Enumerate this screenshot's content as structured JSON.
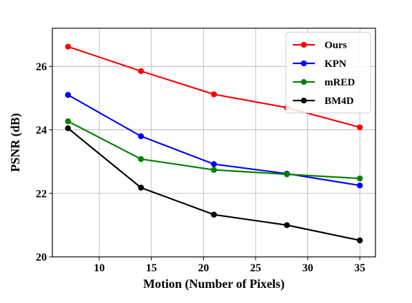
{
  "chart_data": {
    "type": "line",
    "title": "",
    "xlabel": "Motion (Number of Pixels)",
    "ylabel": "PSNR (dB)",
    "xlim": [
      5.5,
      36.5
    ],
    "ylim": [
      20.0,
      27.2
    ],
    "xticks": [
      10,
      15,
      20,
      25,
      30,
      35
    ],
    "yticks": [
      20,
      22,
      24,
      26
    ],
    "grid": true,
    "legend_position": "top-right",
    "x": [
      7,
      14,
      21,
      28,
      35
    ],
    "series": [
      {
        "name": "Ours",
        "color": "#ff0000",
        "values": [
          26.62,
          25.85,
          25.12,
          24.7,
          24.08
        ]
      },
      {
        "name": "KPN",
        "color": "#0000ff",
        "values": [
          25.1,
          23.8,
          22.92,
          22.62,
          22.25
        ]
      },
      {
        "name": "mRED",
        "color": "#008000",
        "values": [
          24.27,
          23.08,
          22.74,
          22.6,
          22.47
        ]
      },
      {
        "name": "BM4D",
        "color": "#000000",
        "values": [
          24.05,
          22.18,
          21.33,
          21.0,
          20.52
        ]
      }
    ]
  }
}
